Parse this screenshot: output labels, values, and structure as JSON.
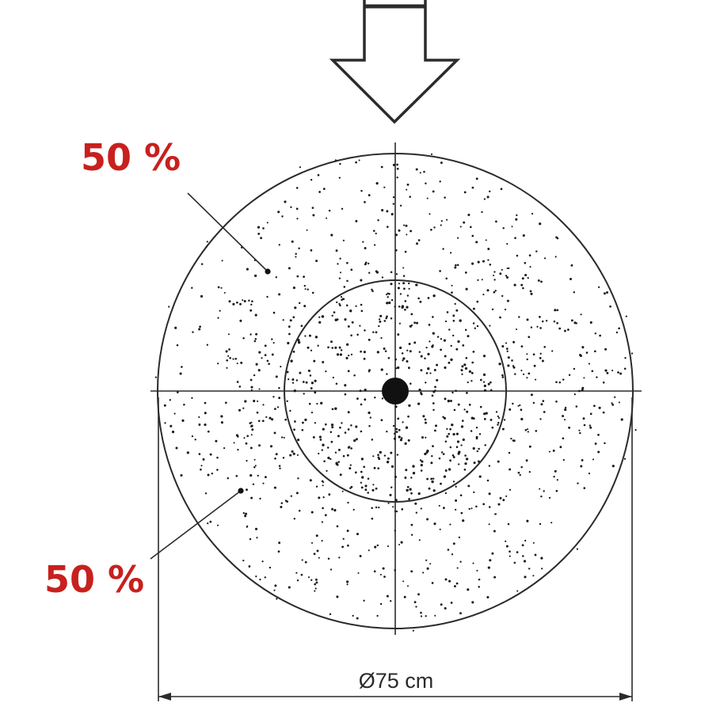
{
  "labels": {
    "upper_share": "50 %",
    "lower_share": "50 %",
    "diameter": "Ø75 cm"
  },
  "colors": {
    "label_red": "#c8201e",
    "line": "#2b2b2b",
    "dot": "#1a1a1a",
    "background": "#ffffff"
  },
  "icons": {
    "arrow": "down-arrow-icon"
  }
}
